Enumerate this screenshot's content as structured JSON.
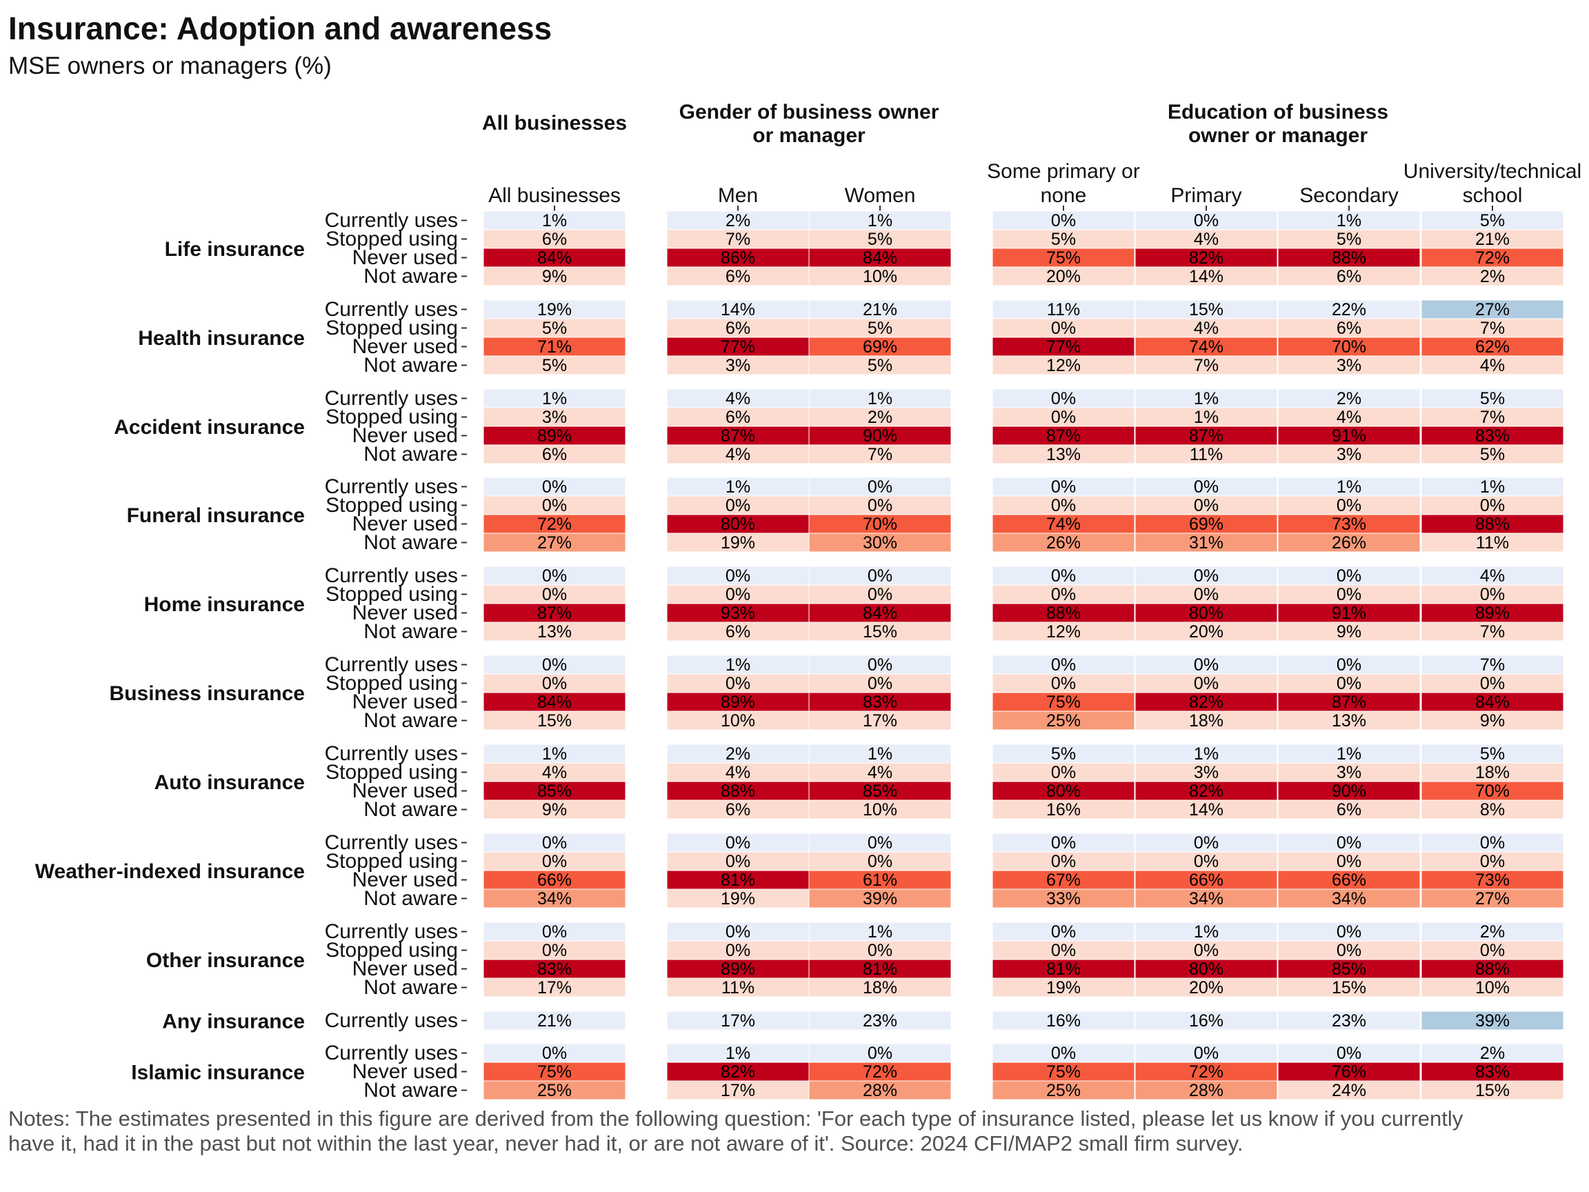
{
  "title": "Insurance: Adoption and awareness",
  "subtitle": "MSE owners or managers (%)",
  "notes": "Notes: The estimates presented in this figure are derived from the following question: 'For each type of insurance listed, please let us know if you currently have it, had it in the past but not within the last year, never had it, or are not aware of it'. Source: 2024 CFI/MAP2 small firm survey.",
  "colors": {
    "currently_uses": "#e8eef9",
    "currently_uses_high": "#afcbe0",
    "low_share": "#fcdcd0",
    "mid_share": "#f89b7a",
    "high_share": "#f65a3e",
    "very_high_share": "#c0001b"
  },
  "chart_data": {
    "type": "heatmap",
    "value_unit": "%",
    "groups": [
      {
        "label": "All businesses",
        "columns": [
          "All businesses"
        ]
      },
      {
        "label": "Gender of business owner or manager",
        "columns": [
          "Men",
          "Women"
        ]
      },
      {
        "label": "Education of business owner or manager",
        "columns": [
          "Some primary or none",
          "Primary",
          "Secondary",
          "University/technical school"
        ]
      }
    ],
    "columns": [
      "All businesses",
      "Men",
      "Women",
      "Some primary or none",
      "Primary",
      "Secondary",
      "University/technical school"
    ],
    "insurance_types": [
      {
        "label": "Life insurance",
        "rows": [
          {
            "status": "Currently uses",
            "values": [
              1,
              2,
              1,
              0,
              0,
              1,
              5
            ]
          },
          {
            "status": "Stopped using",
            "values": [
              6,
              7,
              5,
              5,
              4,
              5,
              21
            ]
          },
          {
            "status": "Never used",
            "values": [
              84,
              86,
              84,
              75,
              82,
              88,
              72
            ]
          },
          {
            "status": "Not aware",
            "values": [
              9,
              6,
              10,
              20,
              14,
              6,
              2
            ]
          }
        ]
      },
      {
        "label": "Health insurance",
        "rows": [
          {
            "status": "Currently uses",
            "values": [
              19,
              14,
              21,
              11,
              15,
              22,
              27
            ]
          },
          {
            "status": "Stopped using",
            "values": [
              5,
              6,
              5,
              0,
              4,
              6,
              7
            ]
          },
          {
            "status": "Never used",
            "values": [
              71,
              77,
              69,
              77,
              74,
              70,
              62
            ]
          },
          {
            "status": "Not aware",
            "values": [
              5,
              3,
              5,
              12,
              7,
              3,
              4
            ]
          }
        ]
      },
      {
        "label": "Accident insurance",
        "rows": [
          {
            "status": "Currently uses",
            "values": [
              1,
              4,
              1,
              0,
              1,
              2,
              5
            ]
          },
          {
            "status": "Stopped using",
            "values": [
              3,
              6,
              2,
              0,
              1,
              4,
              7
            ]
          },
          {
            "status": "Never used",
            "values": [
              89,
              87,
              90,
              87,
              87,
              91,
              83
            ]
          },
          {
            "status": "Not aware",
            "values": [
              6,
              4,
              7,
              13,
              11,
              3,
              5
            ]
          }
        ]
      },
      {
        "label": "Funeral insurance",
        "rows": [
          {
            "status": "Currently uses",
            "values": [
              0,
              1,
              0,
              0,
              0,
              1,
              1
            ]
          },
          {
            "status": "Stopped using",
            "values": [
              0,
              0,
              0,
              0,
              0,
              0,
              0
            ]
          },
          {
            "status": "Never used",
            "values": [
              72,
              80,
              70,
              74,
              69,
              73,
              88
            ]
          },
          {
            "status": "Not aware",
            "values": [
              27,
              19,
              30,
              26,
              31,
              26,
              11
            ]
          }
        ]
      },
      {
        "label": "Home insurance",
        "rows": [
          {
            "status": "Currently uses",
            "values": [
              0,
              0,
              0,
              0,
              0,
              0,
              4
            ]
          },
          {
            "status": "Stopped using",
            "values": [
              0,
              0,
              0,
              0,
              0,
              0,
              0
            ]
          },
          {
            "status": "Never used",
            "values": [
              87,
              93,
              84,
              88,
              80,
              91,
              89
            ]
          },
          {
            "status": "Not aware",
            "values": [
              13,
              6,
              15,
              12,
              20,
              9,
              7
            ]
          }
        ]
      },
      {
        "label": "Business insurance",
        "rows": [
          {
            "status": "Currently uses",
            "values": [
              0,
              1,
              0,
              0,
              0,
              0,
              7
            ]
          },
          {
            "status": "Stopped using",
            "values": [
              0,
              0,
              0,
              0,
              0,
              0,
              0
            ]
          },
          {
            "status": "Never used",
            "values": [
              84,
              89,
              83,
              75,
              82,
              87,
              84
            ]
          },
          {
            "status": "Not aware",
            "values": [
              15,
              10,
              17,
              25,
              18,
              13,
              9
            ]
          }
        ]
      },
      {
        "label": "Auto insurance",
        "rows": [
          {
            "status": "Currently uses",
            "values": [
              1,
              2,
              1,
              5,
              1,
              1,
              5
            ]
          },
          {
            "status": "Stopped using",
            "values": [
              4,
              4,
              4,
              0,
              3,
              3,
              18
            ]
          },
          {
            "status": "Never used",
            "values": [
              85,
              88,
              85,
              80,
              82,
              90,
              70
            ]
          },
          {
            "status": "Not aware",
            "values": [
              9,
              6,
              10,
              16,
              14,
              6,
              8
            ]
          }
        ]
      },
      {
        "label": "Weather-indexed insurance",
        "rows": [
          {
            "status": "Currently uses",
            "values": [
              0,
              0,
              0,
              0,
              0,
              0,
              0
            ]
          },
          {
            "status": "Stopped using",
            "values": [
              0,
              0,
              0,
              0,
              0,
              0,
              0
            ]
          },
          {
            "status": "Never used",
            "values": [
              66,
              81,
              61,
              67,
              66,
              66,
              73
            ]
          },
          {
            "status": "Not aware",
            "values": [
              34,
              19,
              39,
              33,
              34,
              34,
              27
            ]
          }
        ]
      },
      {
        "label": "Other insurance",
        "rows": [
          {
            "status": "Currently uses",
            "values": [
              0,
              0,
              1,
              0,
              1,
              0,
              2
            ]
          },
          {
            "status": "Stopped using",
            "values": [
              0,
              0,
              0,
              0,
              0,
              0,
              0
            ]
          },
          {
            "status": "Never used",
            "values": [
              83,
              89,
              81,
              81,
              80,
              85,
              88
            ]
          },
          {
            "status": "Not aware",
            "values": [
              17,
              11,
              18,
              19,
              20,
              15,
              10
            ]
          }
        ]
      },
      {
        "label": "Any insurance",
        "rows": [
          {
            "status": "Currently uses",
            "values": [
              21,
              17,
              23,
              16,
              16,
              23,
              39
            ]
          }
        ]
      },
      {
        "label": "Islamic insurance",
        "rows": [
          {
            "status": "Currently uses",
            "values": [
              0,
              1,
              0,
              0,
              0,
              0,
              2
            ]
          },
          {
            "status": "Never used",
            "values": [
              75,
              82,
              72,
              75,
              72,
              76,
              83
            ]
          },
          {
            "status": "Not aware",
            "values": [
              25,
              17,
              28,
              25,
              28,
              24,
              15
            ]
          }
        ]
      }
    ]
  }
}
